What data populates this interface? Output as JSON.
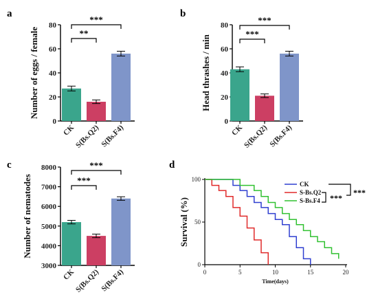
{
  "chart_data": [
    {
      "panel": "a",
      "type": "bar",
      "categories": [
        "CK",
        "S(Bs.Q2)",
        "S(Bs.F4)"
      ],
      "values": [
        27,
        16,
        56
      ],
      "errors": [
        2,
        1.5,
        2
      ],
      "colors": [
        "#3aa58c",
        "#cc3f63",
        "#7f95c9"
      ],
      "ylabel": "Number of eggs / female",
      "xlabel": "",
      "ylim": [
        0,
        80
      ],
      "yticks": [
        0,
        20,
        40,
        60,
        80
      ],
      "significance": [
        {
          "from": 0,
          "to": 1,
          "label": "**"
        },
        {
          "from": 0,
          "to": 2,
          "label": "***"
        }
      ]
    },
    {
      "panel": "b",
      "type": "bar",
      "categories": [
        "CK",
        "S(Bs.Q2)",
        "S(Bs.F4)"
      ],
      "values": [
        43,
        21,
        56
      ],
      "errors": [
        2,
        1.5,
        2
      ],
      "colors": [
        "#3aa58c",
        "#cc3f63",
        "#7f95c9"
      ],
      "ylabel": "Head thrashes / min",
      "xlabel": "",
      "ylim": [
        0,
        80
      ],
      "yticks": [
        0,
        20,
        40,
        60,
        80
      ],
      "significance": [
        {
          "from": 0,
          "to": 1,
          "label": "***"
        },
        {
          "from": 0,
          "to": 2,
          "label": "***"
        }
      ]
    },
    {
      "panel": "c",
      "type": "bar",
      "categories": [
        "CK",
        "S(Bs.Q2)",
        "S(Bs.F4)"
      ],
      "values": [
        5200,
        4500,
        6400
      ],
      "errors": [
        90,
        90,
        90
      ],
      "colors": [
        "#3aa58c",
        "#cc3f63",
        "#7f95c9"
      ],
      "ylabel": "Number of nematodes",
      "xlabel": "",
      "ylim": [
        3000,
        8000
      ],
      "yticks": [
        3000,
        4000,
        5000,
        6000,
        7000,
        8000
      ],
      "significance": [
        {
          "from": 0,
          "to": 1,
          "label": "***"
        },
        {
          "from": 0,
          "to": 2,
          "label": "***"
        }
      ]
    },
    {
      "panel": "d",
      "type": "line",
      "step": true,
      "xlabel": "Time(days)",
      "ylabel": "Survival (%)",
      "xlim": [
        0,
        20
      ],
      "ylim": [
        0,
        100
      ],
      "xticks": [
        0,
        5,
        10,
        15,
        20
      ],
      "yticks": [
        0,
        50,
        100
      ],
      "legend_position": "top-right",
      "series": [
        {
          "name": "CK",
          "color": "#2f3fd0",
          "x": [
            0,
            2,
            4,
            5,
            6,
            7,
            8,
            9,
            10,
            11,
            12,
            13,
            14,
            15
          ],
          "y": [
            100,
            100,
            93,
            87,
            80,
            73,
            67,
            60,
            53,
            47,
            33,
            20,
            7,
            0
          ]
        },
        {
          "name": "S-Bs.Q2",
          "color": "#e02a2a",
          "x": [
            0,
            1,
            2,
            3,
            4,
            5,
            6,
            7,
            8,
            9
          ],
          "y": [
            100,
            93,
            87,
            80,
            67,
            57,
            43,
            29,
            14,
            0
          ]
        },
        {
          "name": "S-Bs.F4",
          "color": "#31c131",
          "x": [
            0,
            3,
            5,
            7,
            8,
            9,
            10,
            11,
            12,
            13,
            14,
            15,
            16,
            17,
            18,
            19
          ],
          "y": [
            100,
            100,
            93,
            87,
            80,
            73,
            67,
            60,
            53,
            47,
            40,
            33,
            27,
            20,
            13,
            7
          ]
        }
      ],
      "significance": [
        {
          "label": "***"
        },
        {
          "label": "***"
        }
      ]
    }
  ]
}
